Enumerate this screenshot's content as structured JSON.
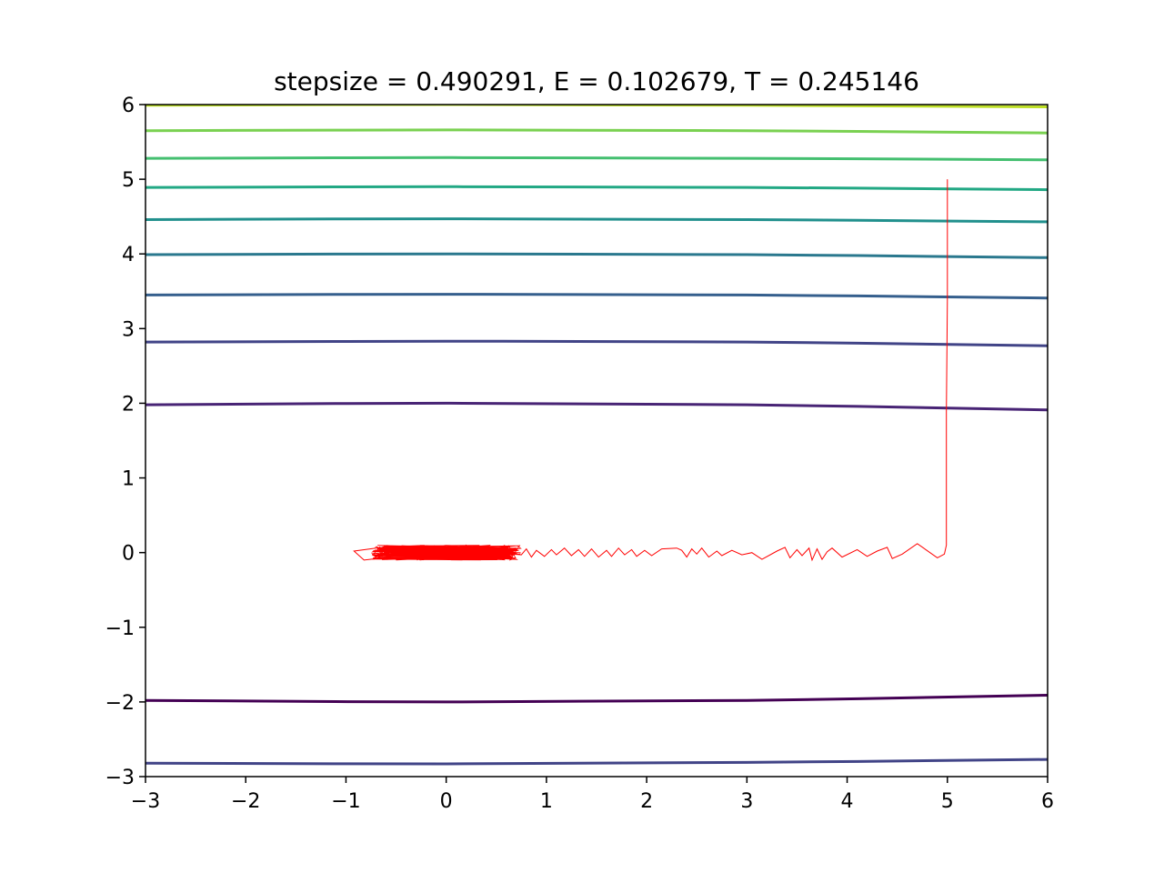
{
  "chart_data": {
    "type": "line",
    "title": "stepsize = 0.490291, E = 0.102679, T = 0.245146",
    "xlabel": "",
    "ylabel": "",
    "xlim": [
      -3,
      6
    ],
    "ylim": [
      -3,
      6
    ],
    "x_ticks": [
      -3,
      -2,
      -1,
      0,
      1,
      2,
      3,
      4,
      5,
      6
    ],
    "y_ticks": [
      -3,
      -2,
      -1,
      0,
      1,
      2,
      3,
      4,
      5,
      6
    ],
    "x_tick_labels": [
      "−3",
      "−2",
      "−1",
      "0",
      "1",
      "2",
      "3",
      "4",
      "5",
      "6"
    ],
    "y_tick_labels": [
      "−3",
      "−2",
      "−1",
      "0",
      "1",
      "2",
      "3",
      "4",
      "5",
      "6"
    ],
    "grid": false,
    "legend": "none",
    "contours": [
      {
        "color": "#440154",
        "points": [
          [
            -3,
            -1.98
          ],
          [
            0,
            -2.0
          ],
          [
            3,
            -1.98
          ],
          [
            6,
            -1.91
          ]
        ]
      },
      {
        "color": "#482475",
        "points": [
          [
            -3,
            1.98
          ],
          [
            0,
            2.0
          ],
          [
            3,
            1.98
          ],
          [
            6,
            1.91
          ]
        ]
      },
      {
        "color": "#414487",
        "points": [
          [
            -3,
            -2.82
          ],
          [
            0,
            -2.83
          ],
          [
            3,
            -2.81
          ],
          [
            6,
            -2.77
          ]
        ]
      },
      {
        "color": "#414487",
        "points": [
          [
            -3,
            2.82
          ],
          [
            0,
            2.83
          ],
          [
            3,
            2.82
          ],
          [
            6,
            2.77
          ]
        ]
      },
      {
        "color": "#355f8d",
        "points": [
          [
            -3,
            3.45
          ],
          [
            0,
            3.46
          ],
          [
            3,
            3.45
          ],
          [
            6,
            3.41
          ]
        ]
      },
      {
        "color": "#2a788e",
        "points": [
          [
            -3,
            3.99
          ],
          [
            0,
            4.0
          ],
          [
            3,
            3.99
          ],
          [
            6,
            3.95
          ]
        ]
      },
      {
        "color": "#21908d",
        "points": [
          [
            -3,
            4.46
          ],
          [
            0,
            4.47
          ],
          [
            3,
            4.46
          ],
          [
            6,
            4.43
          ]
        ]
      },
      {
        "color": "#22a884",
        "points": [
          [
            -3,
            4.89
          ],
          [
            0,
            4.9
          ],
          [
            3,
            4.89
          ],
          [
            6,
            4.86
          ]
        ]
      },
      {
        "color": "#44bf70",
        "points": [
          [
            -3,
            5.28
          ],
          [
            0,
            5.29
          ],
          [
            3,
            5.28
          ],
          [
            6,
            5.26
          ]
        ]
      },
      {
        "color": "#7ad151",
        "points": [
          [
            -3,
            5.65
          ],
          [
            0,
            5.66
          ],
          [
            3,
            5.65
          ],
          [
            6,
            5.62
          ]
        ]
      },
      {
        "color": "#bddf26",
        "points": [
          [
            -3,
            5.99
          ],
          [
            0,
            6.0
          ],
          [
            3,
            5.99
          ],
          [
            6,
            5.97
          ]
        ]
      }
    ],
    "series": [
      {
        "color": "#ff0000",
        "points": [
          [
            5.0,
            5.0
          ],
          [
            5.0,
            3.4
          ],
          [
            4.99,
            1.9
          ],
          [
            4.99,
            0.1
          ],
          [
            4.97,
            -0.02
          ],
          [
            4.9,
            -0.07
          ],
          [
            4.7,
            0.12
          ],
          [
            4.55,
            -0.02
          ],
          [
            4.45,
            -0.08
          ],
          [
            4.4,
            0.07
          ],
          [
            4.3,
            0.02
          ],
          [
            4.2,
            -0.05
          ],
          [
            4.1,
            0.04
          ],
          [
            3.95,
            -0.06
          ],
          [
            3.85,
            0.06
          ],
          [
            3.8,
            0.01
          ],
          [
            3.75,
            -0.09
          ],
          [
            3.7,
            0.05
          ],
          [
            3.65,
            -0.1
          ],
          [
            3.62,
            0.06
          ],
          [
            3.55,
            -0.04
          ],
          [
            3.5,
            0.04
          ],
          [
            3.43,
            -0.07
          ],
          [
            3.38,
            0.07
          ],
          [
            3.3,
            0.02
          ],
          [
            3.15,
            -0.09
          ],
          [
            3.05,
            0.0
          ],
          [
            2.95,
            -0.03
          ],
          [
            2.85,
            0.03
          ],
          [
            2.75,
            -0.04
          ],
          [
            2.7,
            0.02
          ],
          [
            2.62,
            -0.06
          ],
          [
            2.55,
            0.06
          ],
          [
            2.5,
            -0.02
          ],
          [
            2.45,
            0.05
          ],
          [
            2.4,
            -0.06
          ],
          [
            2.35,
            0.03
          ],
          [
            2.3,
            0.06
          ],
          [
            2.15,
            0.05
          ],
          [
            2.05,
            -0.04
          ],
          [
            1.98,
            0.03
          ],
          [
            1.9,
            -0.05
          ],
          [
            1.85,
            0.04
          ],
          [
            1.78,
            -0.03
          ],
          [
            1.72,
            0.06
          ],
          [
            1.65,
            -0.05
          ],
          [
            1.6,
            0.03
          ],
          [
            1.52,
            -0.06
          ],
          [
            1.45,
            0.05
          ],
          [
            1.38,
            -0.05
          ],
          [
            1.32,
            0.04
          ],
          [
            1.25,
            -0.04
          ],
          [
            1.18,
            0.06
          ],
          [
            1.1,
            -0.03
          ],
          [
            1.05,
            0.04
          ],
          [
            0.98,
            -0.05
          ],
          [
            0.9,
            0.03
          ],
          [
            0.85,
            -0.06
          ],
          [
            0.8,
            0.05
          ],
          [
            0.75,
            -0.03
          ]
        ]
      }
    ],
    "noise_cluster": {
      "x_range": [
        -0.75,
        0.75
      ],
      "y_amplitude": 0.1,
      "color": "#ff0000"
    }
  }
}
